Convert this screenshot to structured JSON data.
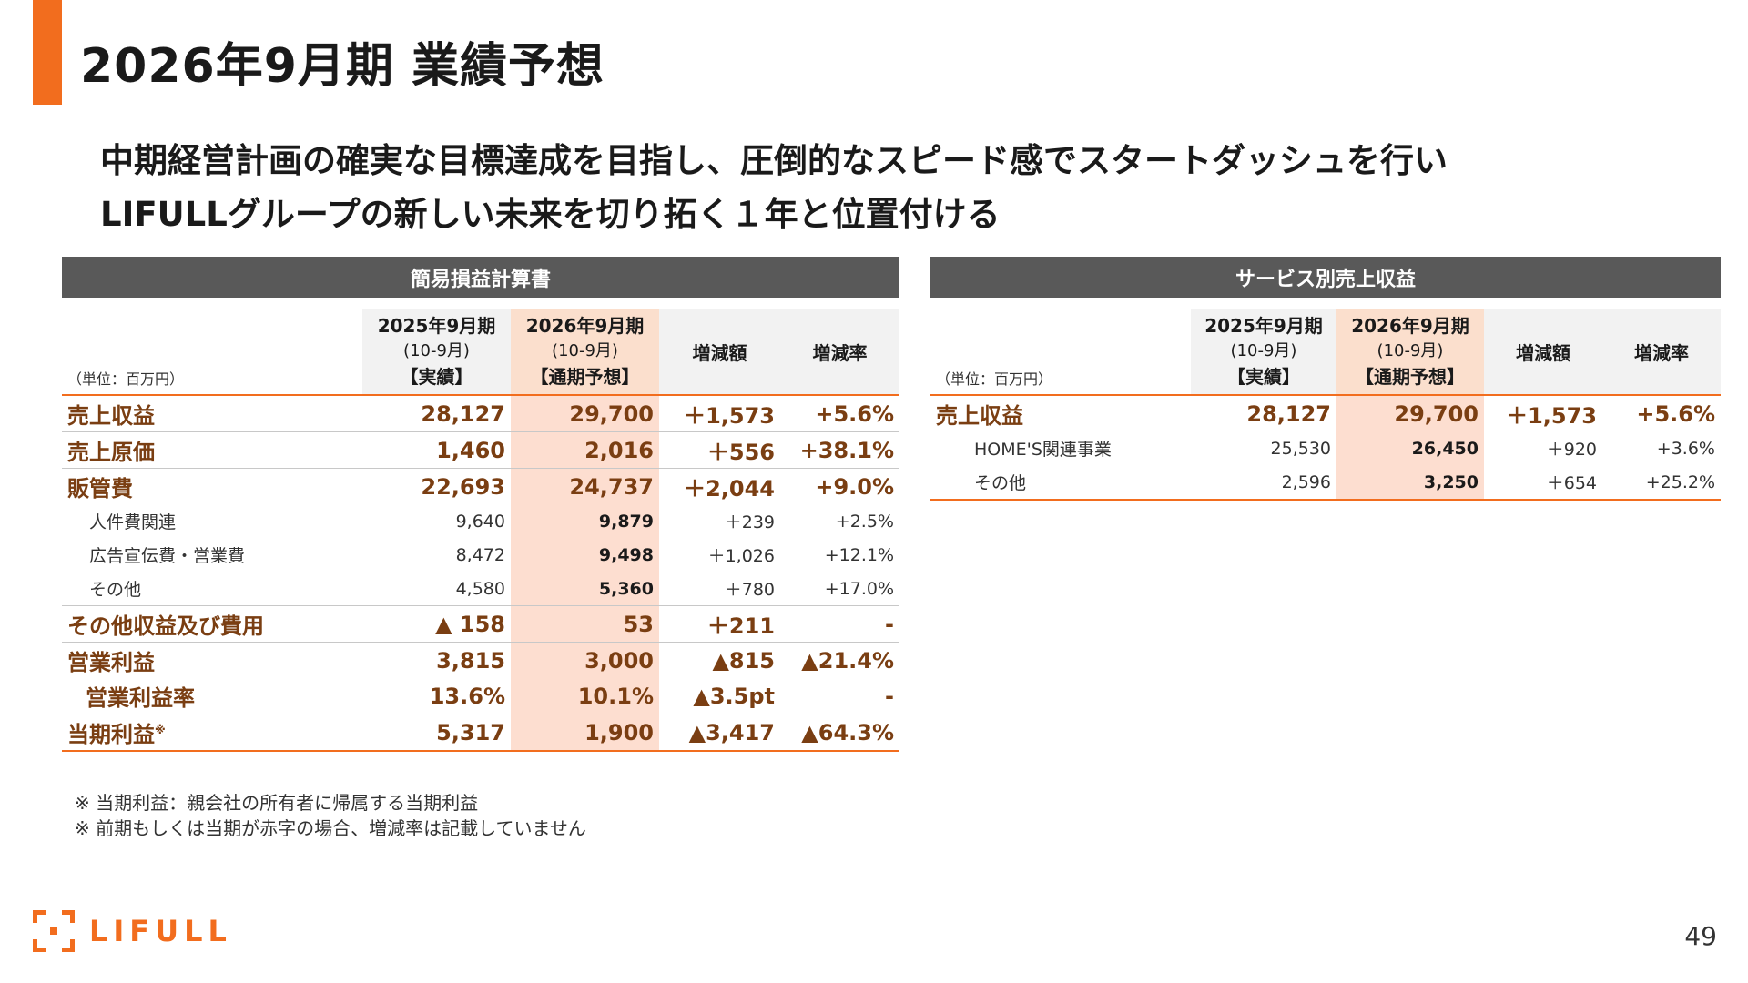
{
  "title": "2026年9月期 業績予想",
  "subtitle": [
    "中期経営計画の確実な目標達成を目指し、圧倒的なスピード感でスタートダッシュを行い",
    "LIFULLグループの新しい未来を切り拓く１年と位置付ける"
  ],
  "left_table": {
    "header": "簡易損益計算書",
    "unit": "（単位：百万円）",
    "columns": {
      "prev": [
        "2025年9月期",
        "(10-9月)",
        "【実績】"
      ],
      "curr": [
        "2026年9月期",
        "(10-9月)",
        "【通期予想】"
      ],
      "diff": "増減額",
      "rate": "増減率"
    },
    "rows": [
      {
        "label": "売上収益",
        "prev": "28,127",
        "curr": "29,700",
        "diff": "＋1,573",
        "rate": "+5.6%"
      },
      {
        "label": "売上原価",
        "prev": "1,460",
        "curr": "2,016",
        "diff": "＋556",
        "rate": "+38.1%"
      },
      {
        "label": "販管費",
        "prev": "22,693",
        "curr": "24,737",
        "diff": "＋2,044",
        "rate": "+9.0%"
      },
      {
        "label": "人件費関連",
        "prev": "9,640",
        "curr": "9,879",
        "diff": "＋239",
        "rate": "+2.5%"
      },
      {
        "label": "広告宣伝費・営業費",
        "prev": "8,472",
        "curr": "9,498",
        "diff": "＋1,026",
        "rate": "+12.1%"
      },
      {
        "label": "その他",
        "prev": "4,580",
        "curr": "5,360",
        "diff": "＋780",
        "rate": "+17.0%"
      },
      {
        "label": "その他収益及び費用",
        "prev": "▲ 158",
        "curr": "53",
        "diff": "＋211",
        "rate": "-"
      },
      {
        "label": "営業利益",
        "prev": "3,815",
        "curr": "3,000",
        "diff": "▲815",
        "rate": "▲21.4%"
      },
      {
        "label": "営業利益率",
        "prev": "13.6%",
        "curr": "10.1%",
        "diff": "▲3.5pt",
        "rate": "-"
      },
      {
        "label": "当期利益",
        "note": "※",
        "prev": "5,317",
        "curr": "1,900",
        "diff": "▲3,417",
        "rate": "▲64.3%"
      }
    ]
  },
  "right_table": {
    "header": "サービス別売上収益",
    "unit": "（単位：百万円）",
    "columns": {
      "prev": [
        "2025年9月期",
        "(10-9月)",
        "【実績】"
      ],
      "curr": [
        "2026年9月期",
        "(10-9月)",
        "【通期予想】"
      ],
      "diff": "増減額",
      "rate": "増減率"
    },
    "rows": [
      {
        "label": "売上収益",
        "prev": "28,127",
        "curr": "29,700",
        "diff": "＋1,573",
        "rate": "+5.6%"
      },
      {
        "label": "HOME'S関連事業",
        "prev": "25,530",
        "curr": "26,450",
        "diff": "＋920",
        "rate": "+3.6%"
      },
      {
        "label": "その他",
        "prev": "2,596",
        "curr": "3,250",
        "diff": "＋654",
        "rate": "+25.2%"
      }
    ]
  },
  "footnotes": [
    "※ 当期利益：親会社の所有者に帰属する当期利益",
    "※ 前期もしくは当期が赤字の場合、増減率は記載していません"
  ],
  "logo_text": "LIFULL",
  "page_number": "49",
  "colors": {
    "accent": "#f26d1e",
    "header_bg": "#595959",
    "highlight": "#fdded0",
    "value_text": "#7a3e12"
  }
}
